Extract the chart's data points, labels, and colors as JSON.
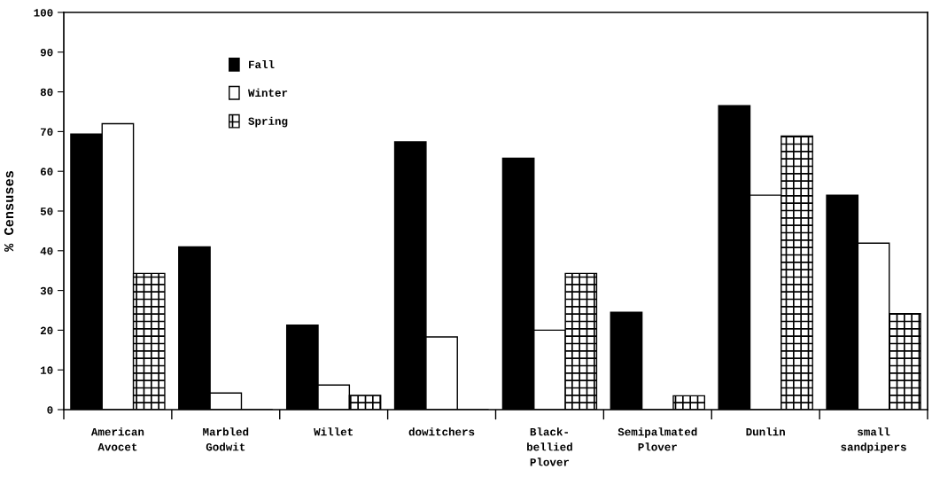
{
  "chart_data": {
    "type": "bar",
    "ylabel": "% Censuses",
    "categories": [
      "American\nAvocet",
      "Marbled\nGodwit",
      "Willet",
      "dowitchers",
      "Black-\nbellied\nPlover",
      "Semipalmated\nPlover",
      "Dunlin",
      "small\nsandpipers"
    ],
    "series": [
      {
        "name": "Fall",
        "color": "#000000",
        "values": [
          69.4,
          41.0,
          21.3,
          67.4,
          63.3,
          24.5,
          76.5,
          54.0
        ]
      },
      {
        "name": "Winter",
        "color": "#ffffff",
        "values": [
          72.0,
          4.2,
          6.2,
          18.3,
          20.0,
          0,
          54.0,
          41.9
        ]
      },
      {
        "name": "Spring",
        "color": "#000000",
        "values": [
          34.3,
          0,
          3.6,
          0,
          34.3,
          3.5,
          68.9,
          24.2
        ]
      }
    ],
    "ylim": [
      0,
      100
    ],
    "yticks": [
      0,
      10,
      20,
      30,
      40,
      50,
      60,
      70,
      80,
      90,
      100
    ],
    "grid": false,
    "legend": "top left"
  }
}
